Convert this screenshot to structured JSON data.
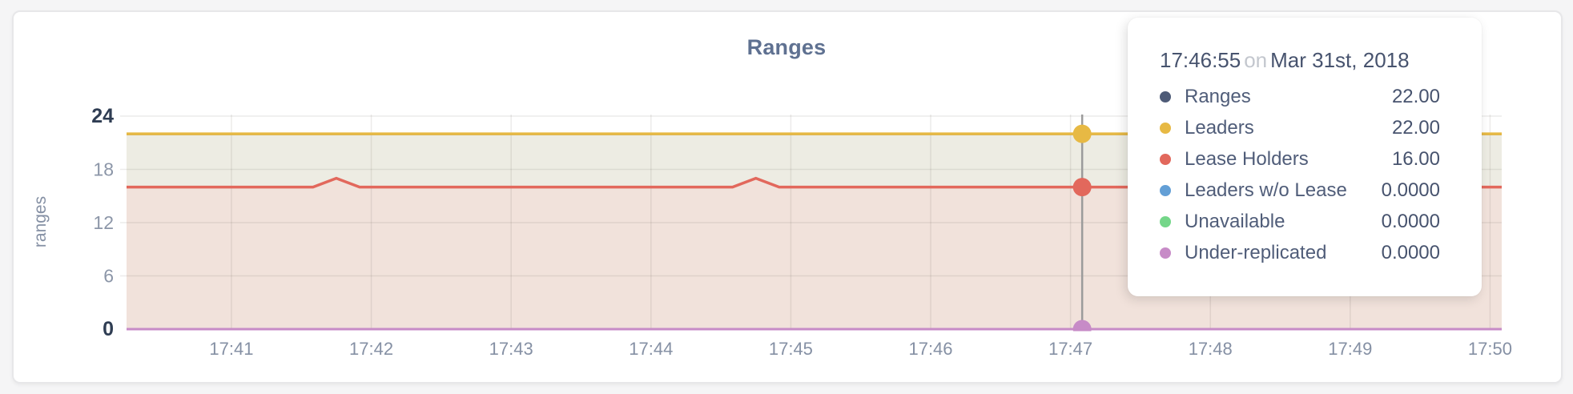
{
  "page": {
    "background": "#F5F5F6"
  },
  "card": {
    "title": "Ranges"
  },
  "tooltip": {
    "time": "17:46:55",
    "on_word": "on",
    "date": "Mar 31st, 2018",
    "rows": [
      {
        "label": "Ranges",
        "value": "22.00",
        "color": "#4E5B77"
      },
      {
        "label": "Leaders",
        "value": "22.00",
        "color": "#E7B944"
      },
      {
        "label": "Lease Holders",
        "value": "16.00",
        "color": "#E2685C"
      },
      {
        "label": "Leaders w/o Lease",
        "value": "0.0000",
        "color": "#639FD6"
      },
      {
        "label": "Unavailable",
        "value": "0.0000",
        "color": "#74D689"
      },
      {
        "label": "Under-replicated",
        "value": "0.0000",
        "color": "#C78BC7"
      }
    ]
  },
  "chart_data": {
    "type": "area",
    "title": "Ranges",
    "ylabel": "ranges",
    "xlabel": "",
    "x_ticks": [
      "17:41",
      "17:42",
      "17:43",
      "17:44",
      "17:45",
      "17:46",
      "17:47",
      "17:48",
      "17:49",
      "17:50"
    ],
    "y_ticks": [
      0,
      6,
      12,
      18,
      24
    ],
    "x_range": [
      "17:40:15",
      "17:50:05"
    ],
    "y_range": [
      0,
      24
    ],
    "grid": true,
    "axis_colors": {
      "tick_mid": "#8C96A8",
      "tick_extreme": "#2F3D53",
      "x_tick": "#8590A4"
    },
    "series": [
      {
        "name": "Ranges",
        "color": "#4E5B77",
        "fill": "none",
        "width": 3.2,
        "points": [
          [
            "17:40:15",
            22
          ],
          [
            "17:50:05",
            22
          ]
        ]
      },
      {
        "name": "Leaders",
        "color": "#E7B944",
        "fill": "#EDECE3",
        "width": 3.5,
        "points": [
          [
            "17:40:15",
            22
          ],
          [
            "17:50:05",
            22
          ]
        ]
      },
      {
        "name": "Lease Holders",
        "color": "#E2685C",
        "fill": "#F1E2DB",
        "width": 3.5,
        "points": [
          [
            "17:40:15",
            16
          ],
          [
            "17:41:35",
            16
          ],
          [
            "17:41:45",
            17
          ],
          [
            "17:41:55",
            16
          ],
          [
            "17:44:35",
            16
          ],
          [
            "17:44:45",
            17
          ],
          [
            "17:44:55",
            16
          ],
          [
            "17:50:05",
            16
          ]
        ]
      },
      {
        "name": "Leaders w/o Lease",
        "color": "#639FD6",
        "fill": "none",
        "width": 3,
        "points": [
          [
            "17:40:15",
            0
          ],
          [
            "17:50:05",
            0
          ]
        ]
      },
      {
        "name": "Unavailable",
        "color": "#74D689",
        "fill": "none",
        "width": 3,
        "points": [
          [
            "17:40:15",
            0
          ],
          [
            "17:50:05",
            0
          ]
        ]
      },
      {
        "name": "Under-replicated",
        "color": "#C78BC7",
        "fill": "none",
        "width": 3,
        "points": [
          [
            "17:40:15",
            0
          ],
          [
            "17:50:05",
            0
          ]
        ]
      }
    ],
    "hover": {
      "x_time": "17:47:05",
      "line_color": "#9B9B9B",
      "points": [
        {
          "series": "Leaders",
          "value": 22
        },
        {
          "series": "Lease Holders",
          "value": 16
        },
        {
          "series": "Under-replicated",
          "value": 0
        }
      ]
    }
  }
}
